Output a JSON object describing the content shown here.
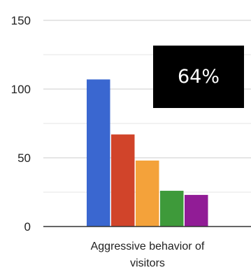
{
  "chart_data": {
    "type": "bar",
    "categories": [
      "Aggressive behavior of visitors"
    ],
    "category_label_lines": [
      "Aggressive behavior of",
      "visitors"
    ],
    "series": [
      {
        "values": [
          107
        ],
        "color": "#3a67d0"
      },
      {
        "values": [
          67
        ],
        "color": "#d1442a"
      },
      {
        "values": [
          48
        ],
        "color": "#f4a23a"
      },
      {
        "values": [
          26
        ],
        "color": "#3e9a3a"
      },
      {
        "values": [
          23
        ],
        "color": "#911c96"
      }
    ],
    "ylim": [
      0,
      150
    ],
    "yticks": [
      0,
      50,
      100,
      150
    ],
    "title": "",
    "xlabel": "",
    "ylabel": "",
    "grid": true
  },
  "overlay": {
    "text": "64%",
    "background": "#000000",
    "color": "#ffffff"
  }
}
